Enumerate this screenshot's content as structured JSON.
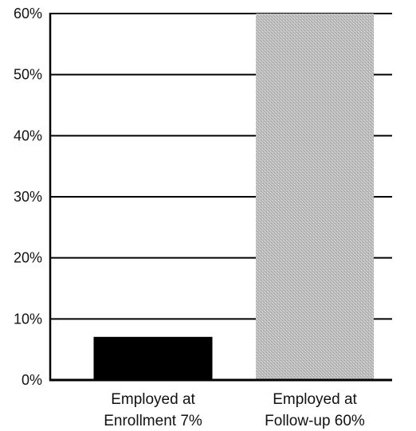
{
  "chart_data": {
    "type": "bar",
    "categories": [
      [
        "Employed at",
        "Enrollment 7%"
      ],
      [
        "Employed at",
        "Follow-up 60%"
      ]
    ],
    "values": [
      7,
      60
    ],
    "y_tick_labels": [
      "0%",
      "10%",
      "20%",
      "30%",
      "40%",
      "50%",
      "60%"
    ],
    "y_ticks": [
      0,
      10,
      20,
      30,
      40,
      50,
      60
    ],
    "ylim": [
      0,
      60
    ],
    "grid": true,
    "legend": "none",
    "title": "",
    "xlabel": "",
    "ylabel": "",
    "colors": [
      "#000000",
      "#c4c4c4"
    ]
  }
}
